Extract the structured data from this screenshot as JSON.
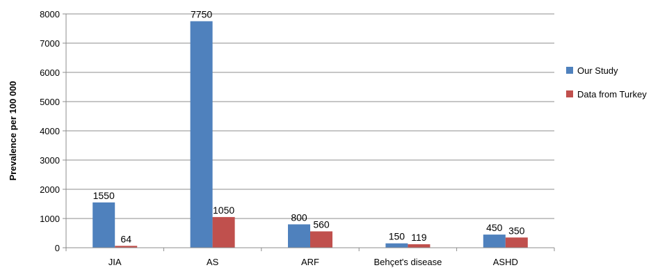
{
  "chart_data": {
    "type": "bar",
    "title": "",
    "xlabel": "",
    "ylabel": "Prevalence per 100 000",
    "categories": [
      "JIA",
      "AS",
      "ARF",
      "Behçet's disease",
      "ASHD"
    ],
    "series": [
      {
        "name": "Our Study",
        "values": [
          1550,
          7750,
          800,
          150,
          450
        ],
        "color": "#4f81bd"
      },
      {
        "name": "Data from Turkey",
        "values": [
          64,
          1050,
          560,
          119,
          350
        ],
        "color": "#c0504d"
      }
    ],
    "ylim": [
      0,
      8000
    ],
    "yticks": [
      0,
      1000,
      2000,
      3000,
      4000,
      5000,
      6000,
      7000,
      8000
    ],
    "grid": true,
    "legend_position": "right",
    "data_labels": true
  }
}
